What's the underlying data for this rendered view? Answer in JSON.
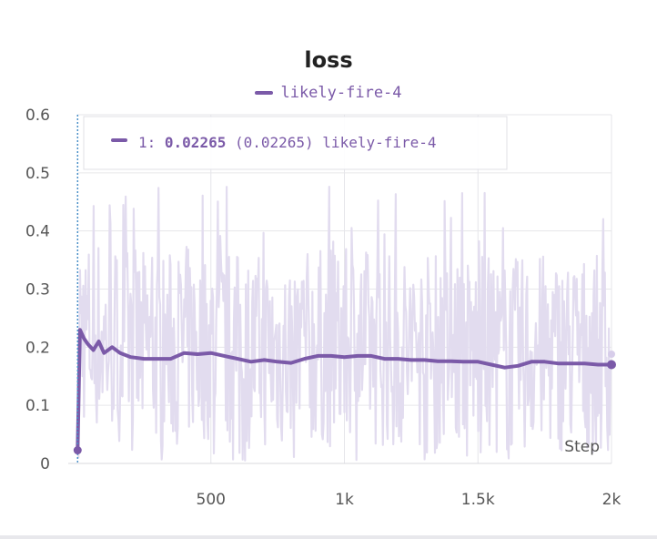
{
  "chart_data": {
    "type": "line",
    "title": "loss",
    "xlabel": "Step",
    "ylabel": "",
    "xlim": [
      0,
      2000
    ],
    "ylim": [
      0,
      0.6
    ],
    "x_ticks": [
      {
        "value": 500,
        "label": "500"
      },
      {
        "value": 1000,
        "label": "1k"
      },
      {
        "value": 1500,
        "label": "1.5k"
      },
      {
        "value": 2000,
        "label": "2k"
      }
    ],
    "y_ticks": [
      {
        "value": 0,
        "label": "0"
      },
      {
        "value": 0.1,
        "label": "0.1"
      },
      {
        "value": 0.2,
        "label": "0.2"
      },
      {
        "value": 0.3,
        "label": "0.3"
      },
      {
        "value": 0.4,
        "label": "0.4"
      },
      {
        "value": 0.5,
        "label": "0.5"
      },
      {
        "value": 0.6,
        "label": "0.6"
      }
    ],
    "grid": true,
    "legend": "top-center",
    "series": [
      {
        "name": "likely-fire-4",
        "color": "#7b5aa8",
        "raw_color": "#e2dcef",
        "smoothed": {
          "x": [
            1,
            10,
            25,
            40,
            60,
            80,
            100,
            130,
            160,
            200,
            250,
            300,
            350,
            400,
            450,
            500,
            550,
            600,
            650,
            700,
            750,
            800,
            850,
            900,
            950,
            1000,
            1050,
            1100,
            1150,
            1200,
            1250,
            1300,
            1350,
            1400,
            1450,
            1500,
            1550,
            1600,
            1650,
            1700,
            1750,
            1800,
            1850,
            1900,
            1950,
            2000
          ],
          "y": [
            0.02265,
            0.23,
            0.215,
            0.205,
            0.195,
            0.21,
            0.19,
            0.2,
            0.19,
            0.183,
            0.18,
            0.18,
            0.18,
            0.19,
            0.188,
            0.19,
            0.185,
            0.18,
            0.175,
            0.178,
            0.175,
            0.173,
            0.18,
            0.185,
            0.185,
            0.183,
            0.185,
            0.185,
            0.18,
            0.18,
            0.178,
            0.178,
            0.176,
            0.176,
            0.175,
            0.175,
            0.17,
            0.165,
            0.168,
            0.175,
            0.175,
            0.172,
            0.172,
            0.172,
            0.17,
            0.17
          ]
        }
      }
    ],
    "tooltip": {
      "step_label": "1:",
      "value": "0.02265",
      "smoothed_value": "(0.02265)",
      "run_name": "likely-fire-4"
    }
  }
}
